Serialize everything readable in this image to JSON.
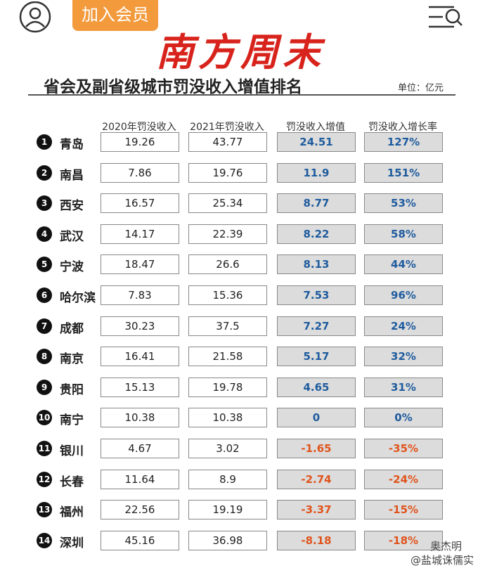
{
  "header": {
    "button": "加入会员",
    "logo": "南方周末"
  },
  "title": "省会及副省级城市罚没收入增值排名",
  "unit": "单位：亿元",
  "table": {
    "columns": [
      "2020年罚没收入",
      "2021年罚没收入",
      "罚没收入增值",
      "罚没收入增长率"
    ],
    "up_color": "#1f5c9e",
    "down_color": "#e0541c",
    "rows": [
      [
        "1",
        "青岛",
        "19.26",
        "43.77",
        "24.51",
        "127%"
      ],
      [
        "2",
        "南昌",
        "7.86",
        "19.76",
        "11.9",
        "151%"
      ],
      [
        "3",
        "西安",
        "16.57",
        "25.34",
        "8.77",
        "53%"
      ],
      [
        "4",
        "武汉",
        "14.17",
        "22.39",
        "8.22",
        "58%"
      ],
      [
        "5",
        "宁波",
        "18.47",
        "26.6",
        "8.13",
        "44%"
      ],
      [
        "6",
        "哈尔滨",
        "7.83",
        "15.36",
        "7.53",
        "96%"
      ],
      [
        "7",
        "成都",
        "30.23",
        "37.5",
        "7.27",
        "24%"
      ],
      [
        "8",
        "南京",
        "16.41",
        "21.58",
        "5.17",
        "32%"
      ],
      [
        "9",
        "贵阳",
        "15.13",
        "19.78",
        "4.65",
        "31%"
      ],
      [
        "10",
        "南宁",
        "10.38",
        "10.38",
        "0",
        "0%"
      ],
      [
        "11",
        "银川",
        "4.67",
        "3.02",
        "-1.65",
        "-35%"
      ],
      [
        "12",
        "长春",
        "11.64",
        "8.9",
        "-2.74",
        "-24%"
      ],
      [
        "13",
        "福州",
        "22.56",
        "19.19",
        "-3.37",
        "-15%"
      ],
      [
        "14",
        "深圳",
        "45.16",
        "36.98",
        "-8.18",
        "-18%"
      ]
    ]
  },
  "watermark": [
    "奥杰明",
    "@盐城诛儒实"
  ]
}
